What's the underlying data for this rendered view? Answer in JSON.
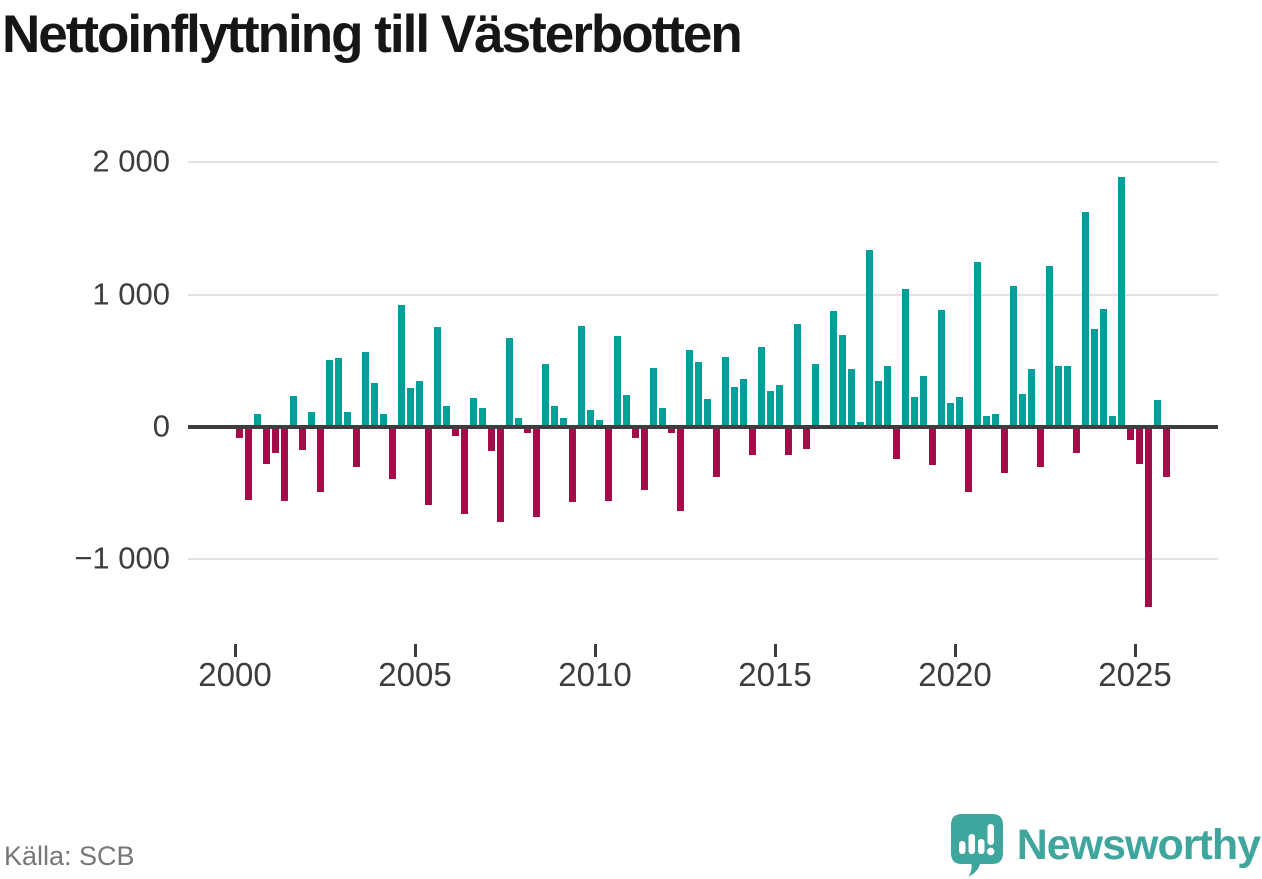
{
  "title": "Nettoinflyttning till Västerbotten",
  "source": "Källa: SCB",
  "brand": {
    "name": "Newsworthy"
  },
  "colors": {
    "positive": "#00a09a",
    "negative": "#a00d49",
    "brand": "#3fa69d",
    "axis": "#3d3d3d",
    "grid": "#e3e3e3",
    "tick_text": "#3d3d3d",
    "title_text": "#161616",
    "source_text": "#777777"
  },
  "chart_data": {
    "type": "bar",
    "title": "Nettoinflyttning till Västerbotten",
    "xlabel": "",
    "ylabel": "",
    "frequency": "quarterly",
    "start": "2000-Q1",
    "end": "2025-Q4",
    "start_year": 2000,
    "grid": true,
    "legend": false,
    "y_axis": {
      "ticks": [
        2000,
        1000,
        0,
        -1000
      ],
      "tick_labels": [
        "2 000",
        "1 000",
        "0",
        "−1 000"
      ],
      "range": [
        -1500,
        2150
      ]
    },
    "x_axis": {
      "tick_years": [
        2000,
        2005,
        2010,
        2015,
        2020,
        2025
      ],
      "tick_labels": [
        "2000",
        "2005",
        "2010",
        "2015",
        "2020",
        "2025"
      ]
    },
    "values": [
      -85,
      -550,
      100,
      -280,
      -200,
      -560,
      235,
      -175,
      115,
      -490,
      510,
      525,
      115,
      -305,
      565,
      335,
      100,
      -390,
      920,
      295,
      350,
      -590,
      755,
      160,
      -70,
      -660,
      220,
      145,
      -185,
      -715,
      675,
      65,
      -45,
      -680,
      475,
      160,
      70,
      -570,
      765,
      125,
      50,
      -560,
      690,
      245,
      -85,
      -475,
      445,
      145,
      -45,
      -635,
      585,
      490,
      210,
      -375,
      530,
      300,
      360,
      -210,
      605,
      275,
      320,
      -210,
      780,
      -170,
      475,
      0,
      880,
      695,
      440,
      35,
      1335,
      350,
      460,
      -245,
      1045,
      225,
      385,
      -285,
      885,
      180,
      225,
      -495,
      1245,
      80,
      95,
      -350,
      1065,
      250,
      440,
      -300,
      1220,
      460,
      460,
      -200,
      1625,
      740,
      895,
      80,
      1890,
      -95,
      -280,
      -1360,
      205,
      -375
    ]
  }
}
